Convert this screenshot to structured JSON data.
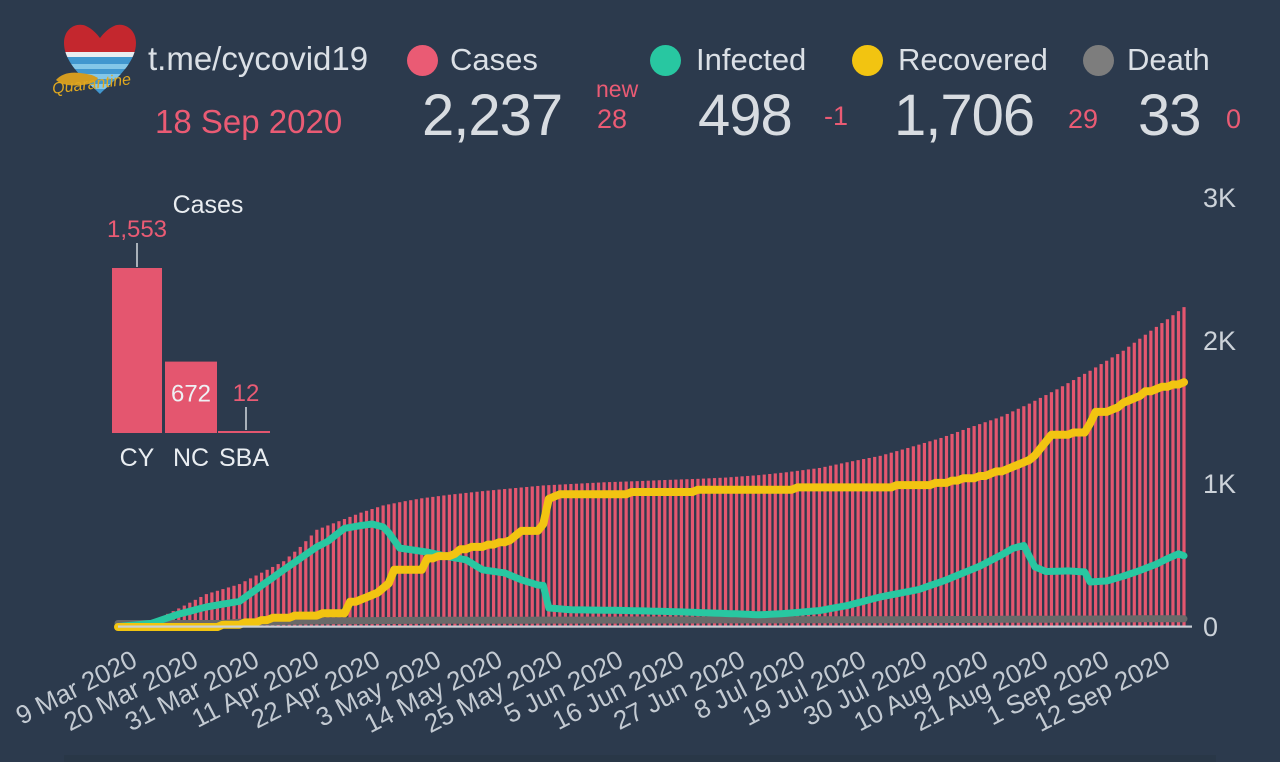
{
  "header": {
    "channel": "t.me/cycovid19",
    "date": "18 Sep 2020",
    "logo_caption": "Quarantine"
  },
  "stats": [
    {
      "label": "Cases",
      "value": "2,237",
      "delta_label": "new",
      "delta": "28",
      "color": "#ea5b74"
    },
    {
      "label": "Infected",
      "value": "498",
      "delta": "-1",
      "color": "#28c7a1"
    },
    {
      "label": "Recovered",
      "value": "1,706",
      "delta": "29",
      "color": "#f2c411"
    },
    {
      "label": "Death",
      "value": "33",
      "delta": "0",
      "color": "#7d7d7d"
    }
  ],
  "chart_data": [
    {
      "type": "bar",
      "title": "Cases",
      "categories": [
        "CY",
        "NC",
        "SBA"
      ],
      "values": [
        1553,
        672,
        12
      ],
      "value_labels": [
        "1,553",
        "672",
        "12"
      ],
      "bar_color": "#e4566f",
      "ylim": [
        0,
        1553
      ],
      "legend_position": "none",
      "grid": false
    },
    {
      "type": "bar+line",
      "title": "",
      "start_date": "9 Mar 2020",
      "end_date": "18 Sep 2020",
      "days": 194,
      "x_tick_every_days": 11,
      "x_tick_labels": [
        "9 Mar 2020",
        "20 Mar 2020",
        "31 Mar 2020",
        "11 Apr 2020",
        "22 Apr 2020",
        "3 May 2020",
        "14 May 2020",
        "25 May 2020",
        "5 Jun 2020",
        "16 Jun 2020",
        "27 Jun 2020",
        "8 Jul 2020",
        "19 Jul 2020",
        "30 Jul 2020",
        "10 Aug 2020",
        "21 Aug 2020",
        "1 Sep 2020",
        "12 Sep 2020"
      ],
      "y_tick_labels": [
        "0",
        "1K",
        "2K",
        "3K"
      ],
      "y_tick_values": [
        0,
        1000,
        2000,
        3000
      ],
      "ylim": [
        0,
        3000
      ],
      "grid": false,
      "series": [
        {
          "name": "Cases",
          "type": "bar",
          "color": "#e4566f",
          "quantize": 0,
          "anchors": [
            [
              0,
              5
            ],
            [
              6,
              35
            ],
            [
              11,
              130
            ],
            [
              16,
              230
            ],
            [
              22,
              300
            ],
            [
              26,
              380
            ],
            [
              30,
              460
            ],
            [
              33,
              560
            ],
            [
              36,
              680
            ],
            [
              40,
              740
            ],
            [
              44,
              800
            ],
            [
              48,
              850
            ],
            [
              52,
              880
            ],
            [
              55,
              900
            ],
            [
              60,
              925
            ],
            [
              66,
              950
            ],
            [
              72,
              972
            ],
            [
              77,
              990
            ],
            [
              83,
              1002
            ],
            [
              88,
              1012
            ],
            [
              94,
              1020
            ],
            [
              99,
              1028
            ],
            [
              105,
              1036
            ],
            [
              110,
              1045
            ],
            [
              116,
              1062
            ],
            [
              121,
              1082
            ],
            [
              127,
              1112
            ],
            [
              132,
              1152
            ],
            [
              138,
              1197
            ],
            [
              143,
              1252
            ],
            [
              149,
              1322
            ],
            [
              154,
              1392
            ],
            [
              160,
              1472
            ],
            [
              165,
              1562
            ],
            [
              170,
              1662
            ],
            [
              176,
              1792
            ],
            [
              182,
              1932
            ],
            [
              187,
              2072
            ],
            [
              190,
              2152
            ],
            [
              193,
              2237
            ]
          ]
        },
        {
          "name": "Infected",
          "type": "line",
          "color": "#28c7a1",
          "quantize": 0,
          "anchors": [
            [
              0,
              3
            ],
            [
              6,
              25
            ],
            [
              11,
              90
            ],
            [
              16,
              140
            ],
            [
              22,
              180
            ],
            [
              26,
              290
            ],
            [
              30,
              400
            ],
            [
              33,
              480
            ],
            [
              36,
              560
            ],
            [
              38,
              600
            ],
            [
              41,
              690
            ],
            [
              44,
              710
            ],
            [
              46,
              720
            ],
            [
              48,
              700
            ],
            [
              49,
              660
            ],
            [
              51,
              552
            ],
            [
              56,
              524
            ],
            [
              60,
              490
            ],
            [
              63,
              470
            ],
            [
              66,
              400
            ],
            [
              70,
              378
            ],
            [
              73,
              330
            ],
            [
              76,
              294
            ],
            [
              77,
              290
            ],
            [
              78,
              133
            ],
            [
              82,
              120
            ],
            [
              90,
              117
            ],
            [
              100,
              108
            ],
            [
              106,
              100
            ],
            [
              112,
              92
            ],
            [
              116,
              85
            ],
            [
              121,
              95
            ],
            [
              127,
              115
            ],
            [
              132,
              150
            ],
            [
              138,
              210
            ],
            [
              145,
              262
            ],
            [
              150,
              330
            ],
            [
              156,
              425
            ],
            [
              160,
              505
            ],
            [
              162,
              550
            ],
            [
              164,
              570
            ],
            [
              166,
              420
            ],
            [
              168,
              388
            ],
            [
              172,
              392
            ],
            [
              175,
              385
            ],
            [
              176,
              315
            ],
            [
              179,
              322
            ],
            [
              182,
              355
            ],
            [
              185,
              395
            ],
            [
              188,
              440
            ],
            [
              190,
              478
            ],
            [
              192,
              512
            ],
            [
              193,
              498
            ]
          ]
        },
        {
          "name": "Recovered",
          "type": "line",
          "color": "#f2c411",
          "quantize": 16,
          "anchors": [
            [
              0,
              0
            ],
            [
              14,
              2
            ],
            [
              18,
              6
            ],
            [
              22,
              20
            ],
            [
              26,
              45
            ],
            [
              29,
              63
            ],
            [
              33,
              80
            ],
            [
              38,
              92
            ],
            [
              41,
              100
            ],
            [
              42,
              170
            ],
            [
              44,
              185
            ],
            [
              47,
              240
            ],
            [
              49,
              300
            ],
            [
              50,
              399
            ],
            [
              55,
              406
            ],
            [
              56,
              483
            ],
            [
              60,
              495
            ],
            [
              62,
              538
            ],
            [
              67,
              573
            ],
            [
              71,
              608
            ],
            [
              73,
              664
            ],
            [
              76,
              678
            ],
            [
              77,
              713
            ],
            [
              78,
              902
            ],
            [
              80,
              923
            ],
            [
              89,
              926
            ],
            [
              95,
              944
            ],
            [
              100,
              948
            ],
            [
              105,
              952
            ],
            [
              110,
              958
            ],
            [
              116,
              962
            ],
            [
              121,
              966
            ],
            [
              127,
              972
            ],
            [
              132,
              976
            ],
            [
              138,
              981
            ],
            [
              143,
              988
            ],
            [
              148,
              1000
            ],
            [
              152,
              1030
            ],
            [
              156,
              1052
            ],
            [
              160,
              1092
            ],
            [
              163,
              1132
            ],
            [
              165,
              1160
            ],
            [
              167,
              1252
            ],
            [
              169,
              1343
            ],
            [
              171,
              1350
            ],
            [
              175,
              1356
            ],
            [
              176,
              1430
            ],
            [
              177,
              1497
            ],
            [
              180,
              1512
            ],
            [
              183,
              1587
            ],
            [
              186,
              1640
            ],
            [
              189,
              1672
            ],
            [
              191,
              1690
            ],
            [
              193,
              1706
            ]
          ]
        },
        {
          "name": "Death",
          "type": "line",
          "color": "#696969",
          "quantize": 0,
          "anchors": [
            [
              0,
              0
            ],
            [
              19,
              0
            ],
            [
              20,
              3
            ],
            [
              22,
              9
            ],
            [
              27,
              12
            ],
            [
              33,
              17
            ],
            [
              44,
              20
            ],
            [
              55,
              22
            ],
            [
              66,
              23
            ],
            [
              88,
              24
            ],
            [
              110,
              25
            ],
            [
              132,
              26
            ],
            [
              154,
              28
            ],
            [
              165,
              30
            ],
            [
              176,
              31
            ],
            [
              187,
              33
            ],
            [
              193,
              33
            ]
          ]
        }
      ]
    }
  ]
}
